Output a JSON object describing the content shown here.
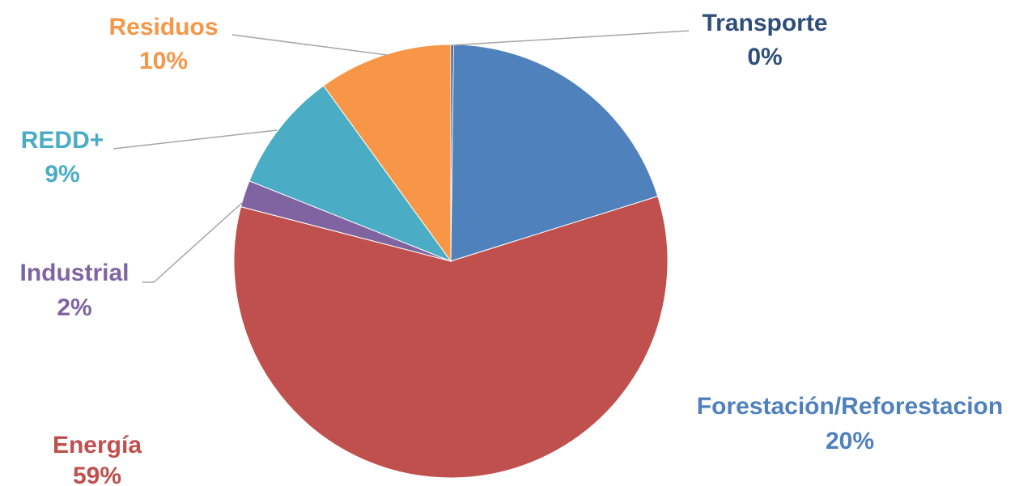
{
  "chart_data": {
    "type": "pie",
    "title": "",
    "slices": [
      {
        "name": "Transporte",
        "value": 0.2,
        "percent_label": "0%",
        "color": "#2F4F7A"
      },
      {
        "name": "Forestación/Reforestacion",
        "value": 20,
        "percent_label": "20%",
        "color": "#4F81BD"
      },
      {
        "name": "Energía",
        "value": 59,
        "percent_label": "59%",
        "color": "#C0504D"
      },
      {
        "name": "Industrial",
        "value": 2,
        "percent_label": "2%",
        "color": "#8064A2"
      },
      {
        "name": "REDD+",
        "value": 9,
        "percent_label": "9%",
        "color": "#4BACC6"
      },
      {
        "name": "Residuos",
        "value": 10,
        "percent_label": "10%",
        "color": "#F79646"
      }
    ],
    "label_colors": {
      "Transporte": "#2F4F7A",
      "Forestación/Reforestacion": "#4F81BD",
      "Energía": "#C0504D",
      "Industrial": "#8064A2",
      "REDD+": "#4BACC6",
      "Residuos": "#F79646"
    },
    "start_angle_deg": 0,
    "direction": "clockwise",
    "legend": "none",
    "leader_line_color": "#A6A6A6"
  }
}
